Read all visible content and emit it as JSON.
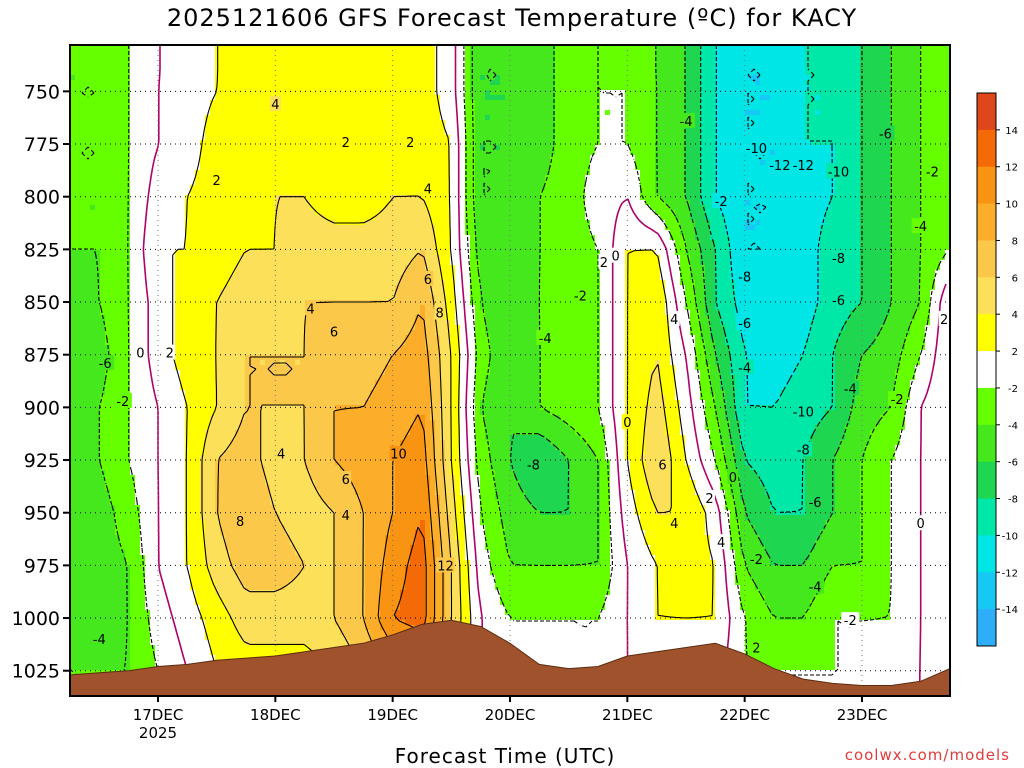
{
  "title": "2025121606 GFS Forecast Temperature (ºC) for KACY",
  "credit": "coolwx.com/models",
  "chart_data": {
    "type": "heatmap",
    "title": "2025121606 GFS Forecast Temperature (ºC) for KACY",
    "xlabel": "Forecast Time (UTC)",
    "ylabel": "",
    "x_ticks": [
      {
        "label": "17DEC",
        "sub": "2025",
        "day": 17.0
      },
      {
        "label": "18DEC",
        "sub": "",
        "day": 18.0
      },
      {
        "label": "19DEC",
        "sub": "",
        "day": 19.0
      },
      {
        "label": "20DEC",
        "sub": "",
        "day": 20.0
      },
      {
        "label": "21DEC",
        "sub": "",
        "day": 21.0
      },
      {
        "label": "22DEC",
        "sub": "",
        "day": 22.0
      },
      {
        "label": "23DEC",
        "sub": "",
        "day": 23.0
      }
    ],
    "xlim": [
      16.25,
      23.75
    ],
    "y_ticks": [
      750,
      775,
      800,
      825,
      850,
      875,
      900,
      925,
      950,
      975,
      1000,
      1025
    ],
    "ylim": [
      1037,
      728
    ],
    "colorbar": {
      "tick_labels": [
        "14",
        "12",
        "10",
        "8",
        "6",
        "4",
        "2",
        "-2",
        "-4",
        "-6",
        "-8",
        "-10",
        "-12",
        "-14"
      ],
      "colors": [
        "#e0461b",
        "#f46a06",
        "#f89412",
        "#fcae2b",
        "#fcc84a",
        "#fde05a",
        "#ffff00",
        "#ffffff",
        "#66ff00",
        "#44e81c",
        "#1fd650",
        "#00e8a8",
        "#00e6e6",
        "#17c8f4",
        "#2eaef8"
      ]
    },
    "time_columns": [
      16.25,
      16.5,
      16.75,
      17.0,
      17.25,
      17.5,
      17.75,
      18.0,
      18.25,
      18.5,
      18.75,
      19.0,
      19.25,
      19.5,
      19.75,
      20.0,
      20.25,
      20.5,
      20.75,
      21.0,
      21.25,
      21.5,
      21.75,
      22.0,
      22.25,
      22.5,
      22.75,
      23.0,
      23.25,
      23.5,
      23.75
    ],
    "pressure_rows": [
      740,
      750,
      775,
      800,
      825,
      850,
      875,
      900,
      925,
      950,
      975,
      1000,
      1025
    ],
    "temperature_grid": [
      [
        -4,
        -4,
        -2,
        0,
        0,
        2,
        3,
        3,
        3,
        2,
        2,
        3,
        3,
        1,
        -6,
        -6,
        -5,
        -3,
        -2,
        -3,
        -4,
        -6,
        -10,
        -12,
        -12,
        -10,
        -10,
        -8,
        -6,
        -4,
        -2
      ],
      [
        -4,
        -4,
        -2,
        0,
        1,
        2,
        3,
        4,
        3,
        3,
        2,
        3,
        3,
        1,
        -6,
        -6,
        -5,
        -3,
        -2,
        -2,
        -4,
        -6,
        -10,
        -12,
        -12,
        -10,
        -10,
        -8,
        -6,
        -4,
        -2
      ],
      [
        -4,
        -4,
        -2,
        0,
        1,
        3,
        3,
        4,
        3,
        3,
        2,
        3,
        3,
        2,
        -6,
        -6,
        -5,
        -3,
        -2,
        -2,
        -4,
        -6,
        -10,
        -12,
        -12,
        -10,
        -10,
        -8,
        -6,
        -4,
        -2
      ],
      [
        -4,
        -4,
        -2,
        1,
        2,
        3,
        3,
        4,
        4,
        3,
        3,
        4,
        4,
        2,
        -6,
        -6,
        -4,
        -3,
        -1,
        0,
        -4,
        -6,
        -10,
        -12,
        -12,
        -11,
        -10,
        -8,
        -6,
        -4,
        -2
      ],
      [
        -4,
        -4,
        -2,
        2,
        2,
        3,
        4,
        4,
        5,
        5,
        5,
        5,
        6,
        2,
        -5,
        -6,
        -4,
        -3,
        -2,
        2,
        2,
        -4,
        -8,
        -12,
        -12,
        -11,
        -9,
        -8,
        -6,
        -4,
        -2
      ],
      [
        -5,
        -4,
        -2,
        1,
        3,
        4,
        5,
        5,
        6,
        6,
        6,
        6,
        8,
        3,
        -4,
        -6,
        -4,
        -2,
        -2,
        2,
        4,
        -2,
        -8,
        -11,
        -12,
        -11,
        -9,
        -8,
        -6,
        -4,
        2
      ],
      [
        -6,
        -5,
        -2,
        1,
        3,
        4,
        6,
        6,
        6,
        7,
        7,
        8,
        9,
        4,
        -3,
        -6,
        -4,
        -3,
        -2,
        2,
        4,
        0,
        -6,
        -10,
        -11,
        -10,
        -8,
        -6,
        -5,
        -2,
        2
      ],
      [
        -6,
        -4,
        -2,
        0,
        2,
        4,
        6,
        6,
        6,
        8,
        8,
        9,
        10,
        4,
        -4,
        -6,
        -4,
        -3,
        -2,
        2,
        5,
        1,
        -4,
        -10,
        -10,
        -9,
        -8,
        -5,
        -4,
        0,
        2
      ],
      [
        -6,
        -4,
        -2,
        0,
        2,
        6,
        7,
        5,
        6,
        8,
        9,
        10,
        11,
        4,
        -3,
        -6,
        -8,
        -6,
        -4,
        2,
        6,
        2,
        -2,
        -8,
        -9,
        -8,
        -6,
        -4,
        -2,
        0,
        2
      ],
      [
        -5,
        -5,
        -3,
        0,
        2,
        6,
        8,
        6,
        5,
        6,
        8,
        10,
        12,
        5,
        -2,
        -5,
        -6,
        -6,
        -4,
        1,
        4,
        4,
        1,
        -6,
        -8,
        -8,
        -6,
        -4,
        -2,
        0,
        2
      ],
      [
        -4,
        -5,
        -4,
        0,
        2,
        5,
        7,
        7,
        6,
        6,
        8,
        11,
        13,
        6,
        -1,
        -4,
        -4,
        -4,
        -4,
        0,
        2,
        3,
        2,
        -4,
        -6,
        -6,
        -4,
        -4,
        -2,
        0,
        2
      ],
      [
        -4,
        -5,
        -4,
        -1,
        1,
        3,
        5,
        5,
        5,
        6,
        8,
        12,
        13,
        6,
        0,
        -2,
        -2,
        -2,
        -2,
        0,
        2,
        2,
        2,
        -2,
        -4,
        -4,
        -2,
        -2,
        -2,
        0,
        2
      ],
      [
        -4,
        -4,
        -4,
        -2,
        0,
        2,
        3,
        3,
        3,
        4,
        6,
        8,
        9,
        5,
        0,
        -2,
        -2,
        -2,
        -2,
        0,
        1,
        1,
        1,
        -2,
        -2,
        -2,
        -2,
        -2,
        -1,
        0,
        2
      ]
    ],
    "contour_labels": [
      {
        "text": "-10",
        "day": 22.1,
        "p": 777
      },
      {
        "text": "-12",
        "day": 22.3,
        "p": 785
      },
      {
        "text": "-12",
        "day": 22.5,
        "p": 785
      },
      {
        "text": "-10",
        "day": 22.8,
        "p": 788
      },
      {
        "text": "-4",
        "day": 21.5,
        "p": 764
      },
      {
        "text": "-6",
        "day": 23.2,
        "p": 770
      },
      {
        "text": "-2",
        "day": 23.6,
        "p": 788
      },
      {
        "text": "-4",
        "day": 23.5,
        "p": 814
      },
      {
        "text": "-8",
        "day": 22.8,
        "p": 829
      },
      {
        "text": "-6",
        "day": 22.8,
        "p": 849
      },
      {
        "text": "-8",
        "day": 22.0,
        "p": 838
      },
      {
        "text": "-6",
        "day": 22.0,
        "p": 860
      },
      {
        "text": "-4",
        "day": 22.0,
        "p": 881
      },
      {
        "text": "-10",
        "day": 22.5,
        "p": 902
      },
      {
        "text": "-4",
        "day": 22.9,
        "p": 891
      },
      {
        "text": "-8",
        "day": 22.5,
        "p": 920
      },
      {
        "text": "-6",
        "day": 22.6,
        "p": 945
      },
      {
        "text": "-4",
        "day": 22.6,
        "p": 985
      },
      {
        "text": "-2",
        "day": 22.9,
        "p": 1001
      },
      {
        "text": "-2",
        "day": 23.3,
        "p": 896
      },
      {
        "text": "2",
        "day": 23.7,
        "p": 858
      },
      {
        "text": "0",
        "day": 23.5,
        "p": 955
      },
      {
        "text": "-2",
        "day": 21.8,
        "p": 802
      },
      {
        "text": "2",
        "day": 20.8,
        "p": 831
      },
      {
        "text": "0",
        "day": 20.9,
        "p": 828
      },
      {
        "text": "-2",
        "day": 20.6,
        "p": 847
      },
      {
        "text": "-4",
        "day": 20.3,
        "p": 867
      },
      {
        "text": "-8",
        "day": 20.2,
        "p": 927
      },
      {
        "text": "4",
        "day": 21.4,
        "p": 858
      },
      {
        "text": "0",
        "day": 21.0,
        "p": 907
      },
      {
        "text": "6",
        "day": 21.3,
        "p": 927
      },
      {
        "text": "2",
        "day": 21.7,
        "p": 943
      },
      {
        "text": "0",
        "day": 21.9,
        "p": 933
      },
      {
        "text": "4",
        "day": 21.4,
        "p": 955
      },
      {
        "text": "4",
        "day": 21.8,
        "p": 964
      },
      {
        "text": "-2",
        "day": 22.1,
        "p": 972
      },
      {
        "text": "2",
        "day": 22.1,
        "p": 1014
      },
      {
        "text": "4",
        "day": 18.0,
        "p": 756
      },
      {
        "text": "2",
        "day": 17.5,
        "p": 792
      },
      {
        "text": "2",
        "day": 18.6,
        "p": 774
      },
      {
        "text": "2",
        "day": 19.15,
        "p": 774
      },
      {
        "text": "4",
        "day": 19.3,
        "p": 796
      },
      {
        "text": "6",
        "day": 19.3,
        "p": 839
      },
      {
        "text": "8",
        "day": 19.4,
        "p": 855
      },
      {
        "text": "4",
        "day": 18.3,
        "p": 853
      },
      {
        "text": "6",
        "day": 18.5,
        "p": 864
      },
      {
        "text": "2",
        "day": 17.1,
        "p": 874
      },
      {
        "text": "0",
        "day": 16.85,
        "p": 874
      },
      {
        "text": "-6",
        "day": 16.55,
        "p": 879
      },
      {
        "text": "-2",
        "day": 16.7,
        "p": 897
      },
      {
        "text": "4",
        "day": 18.05,
        "p": 922
      },
      {
        "text": "10",
        "day": 19.05,
        "p": 922
      },
      {
        "text": "6",
        "day": 18.6,
        "p": 934
      },
      {
        "text": "8",
        "day": 17.7,
        "p": 954
      },
      {
        "text": "4",
        "day": 18.6,
        "p": 951
      },
      {
        "text": "12",
        "day": 19.45,
        "p": 975
      },
      {
        "text": "-4",
        "day": 16.5,
        "p": 1010
      }
    ],
    "terrain": {
      "color": "#a0522d",
      "surface_pressure": [
        1027,
        1026,
        1025,
        1023,
        1022,
        1020,
        1019,
        1018,
        1016,
        1014,
        1012,
        1008,
        1003,
        1001,
        1004,
        1012,
        1022,
        1024,
        1023,
        1018,
        1016,
        1014,
        1012,
        1017,
        1024,
        1029,
        1031,
        1032,
        1032,
        1030,
        1024
      ]
    },
    "grid": true
  }
}
